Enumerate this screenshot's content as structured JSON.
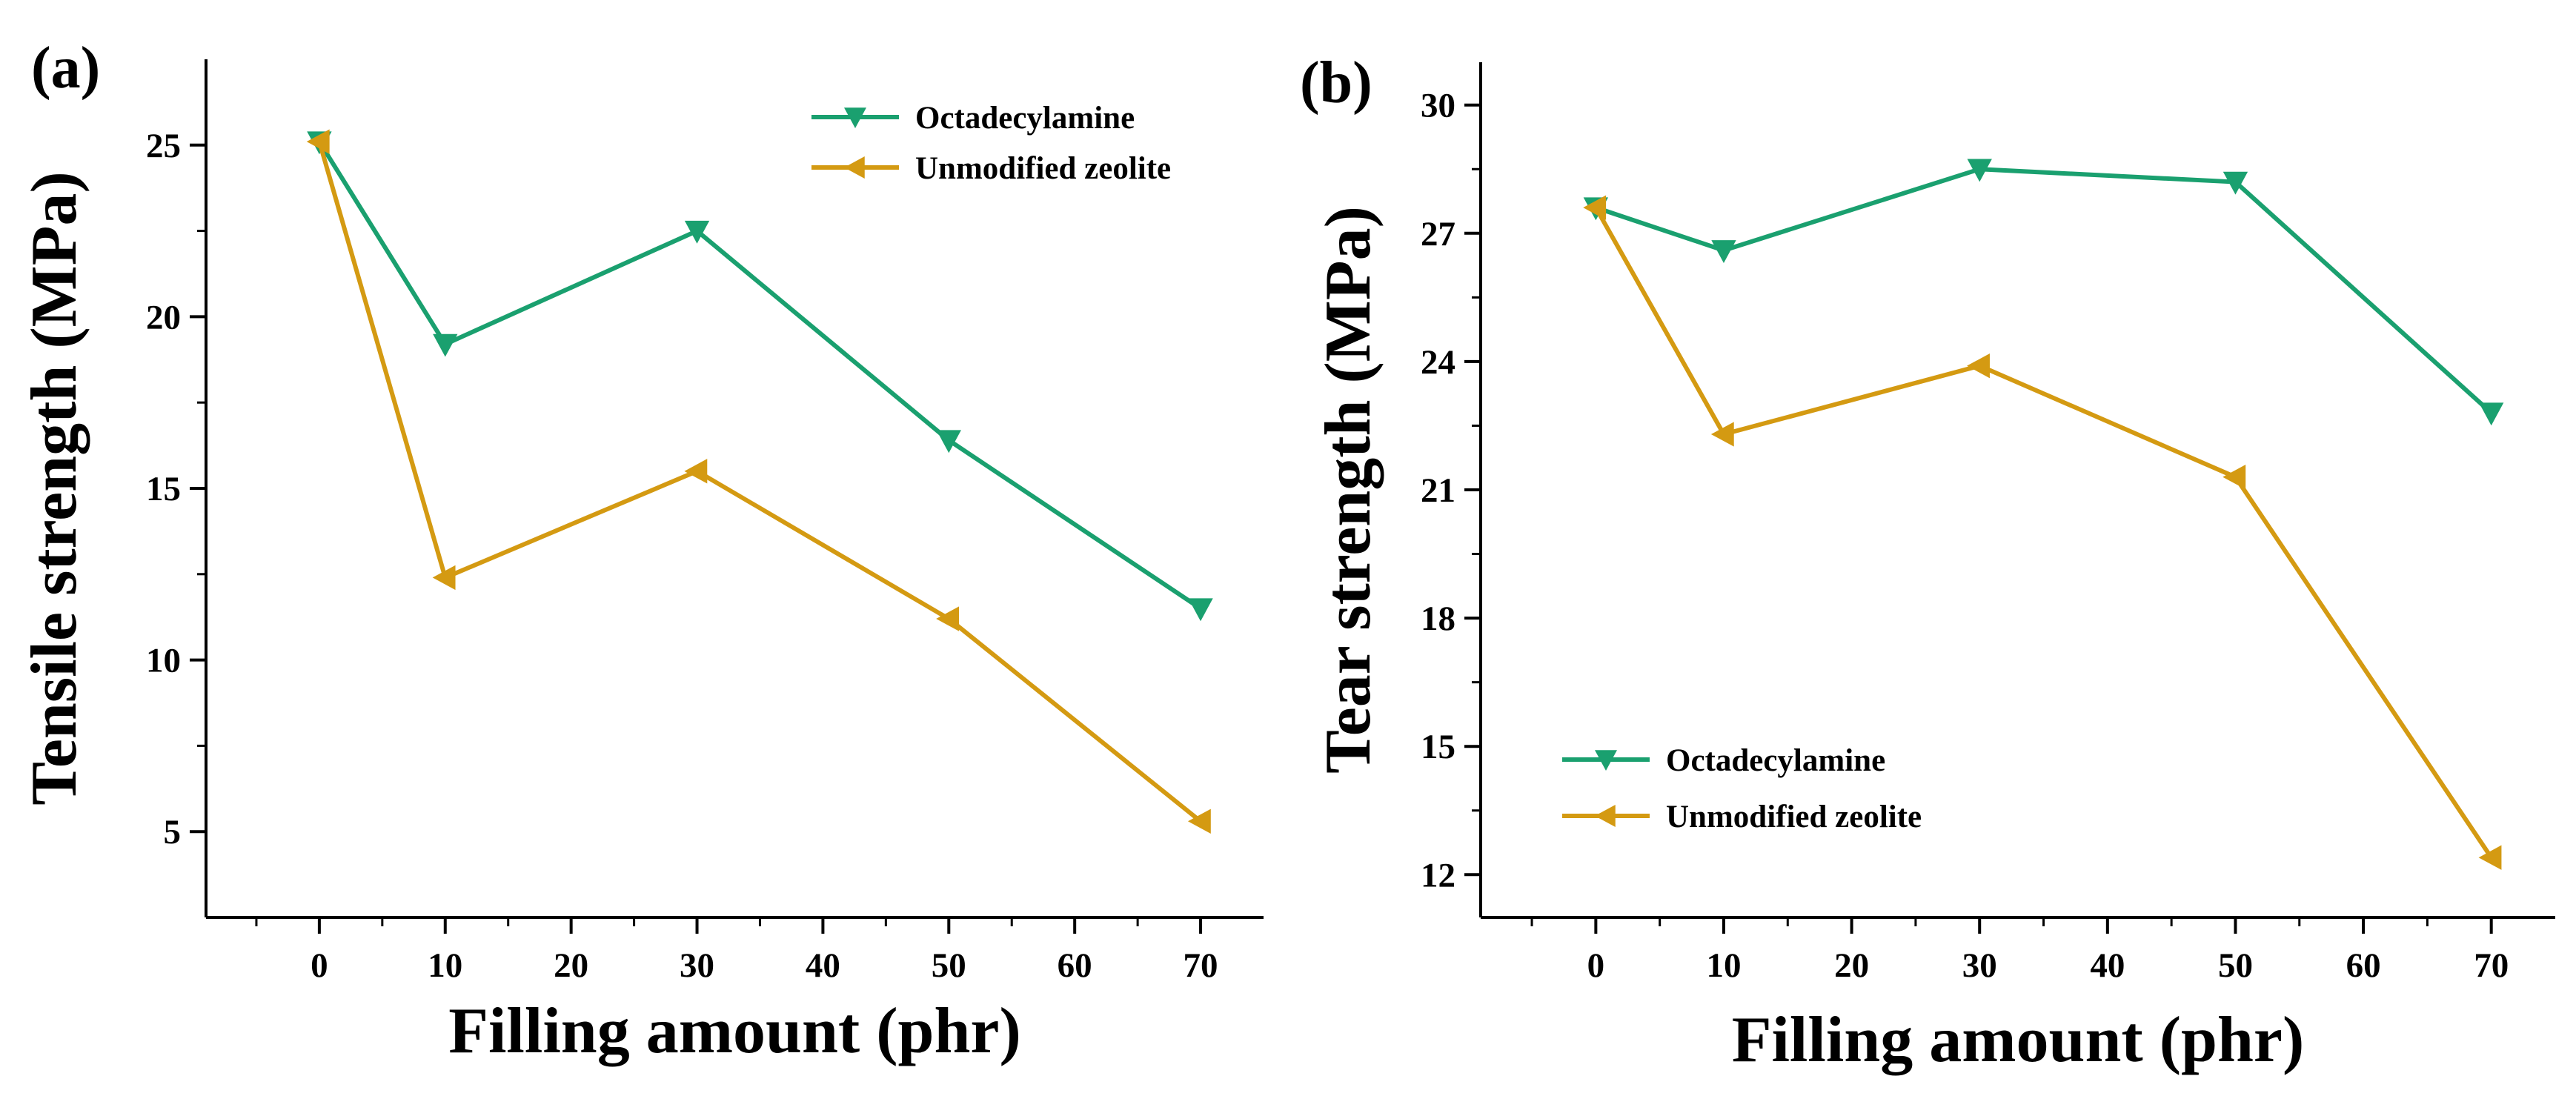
{
  "chart_data": [
    {
      "panel": "(a)",
      "type": "line",
      "xlabel": "Filling amount (phr)",
      "ylabel": "Tensile strength (MPa)",
      "xlim": [
        -9,
        75
      ],
      "ylim": [
        2.5,
        27.5
      ],
      "x_ticks": [
        0,
        10,
        20,
        30,
        40,
        50,
        60,
        70
      ],
      "y_ticks": [
        5,
        10,
        15,
        20,
        25
      ],
      "legend_position": "top-right",
      "series": [
        {
          "name": "Octadecylamine",
          "color": "#1aa06f",
          "marker": "triangle-down",
          "x": [
            0,
            10,
            30,
            50,
            70
          ],
          "y": [
            25.1,
            19.2,
            22.5,
            16.4,
            11.5
          ]
        },
        {
          "name": "Unmodified zeolite",
          "color": "#d49a12",
          "marker": "triangle-left",
          "x": [
            0,
            10,
            30,
            50,
            70
          ],
          "y": [
            25.1,
            12.4,
            15.5,
            11.2,
            5.3
          ]
        }
      ]
    },
    {
      "panel": "(b)",
      "type": "line",
      "xlabel": "Filling amount (phr)",
      "ylabel": "Tear strength (MPa)",
      "xlim": [
        -9,
        75
      ],
      "ylim": [
        11,
        31
      ],
      "x_ticks": [
        0,
        10,
        20,
        30,
        40,
        50,
        60,
        70
      ],
      "y_ticks": [
        12,
        15,
        18,
        21,
        24,
        27,
        30
      ],
      "legend_position": "bottom-left",
      "series": [
        {
          "name": "Octadecylamine",
          "color": "#1aa06f",
          "marker": "triangle-down",
          "x": [
            0,
            10,
            30,
            50,
            70
          ],
          "y": [
            27.6,
            26.6,
            28.5,
            28.2,
            22.8
          ]
        },
        {
          "name": "Unmodified zeolite",
          "color": "#d49a12",
          "marker": "triangle-left",
          "x": [
            0,
            10,
            30,
            50,
            70
          ],
          "y": [
            27.6,
            22.3,
            23.9,
            21.3,
            12.4
          ]
        }
      ]
    }
  ]
}
